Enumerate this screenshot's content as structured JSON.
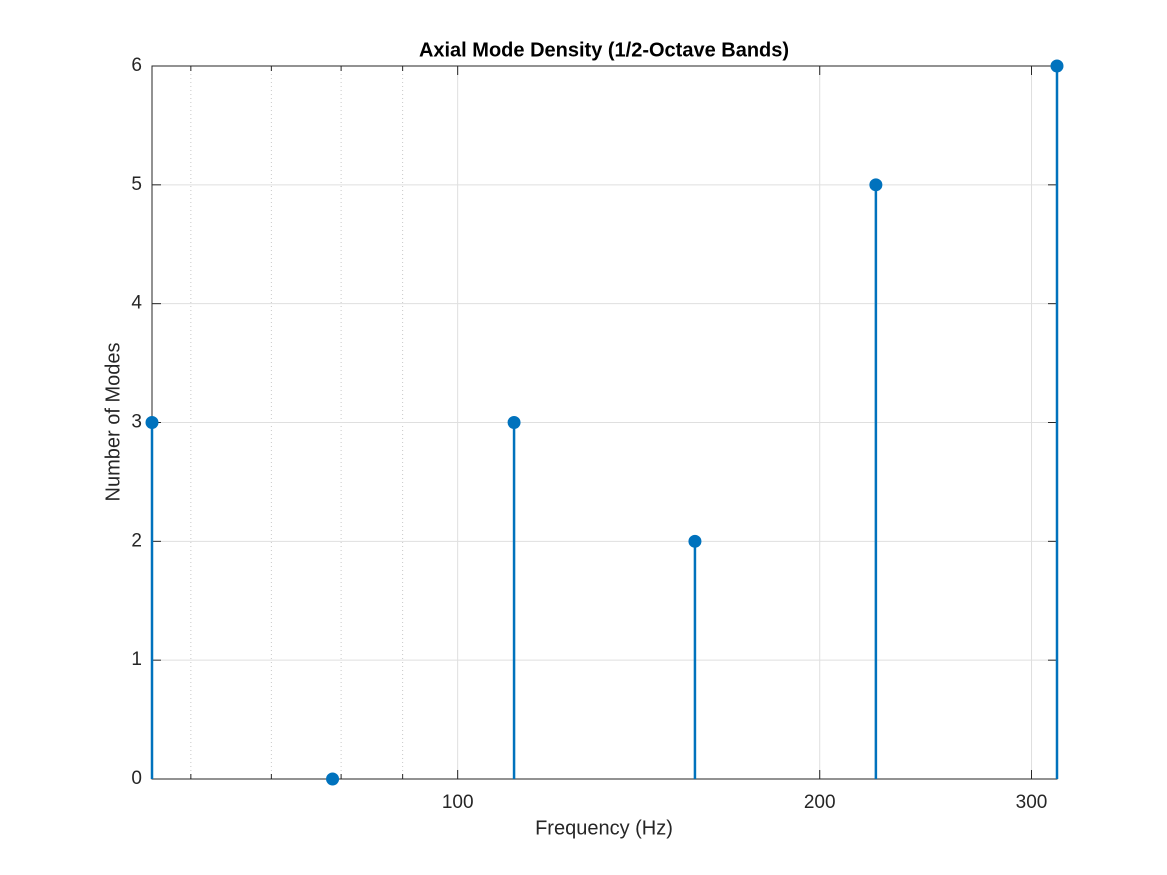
{
  "chart_data": {
    "type": "stem",
    "title": "Axial Mode Density (1/2-Octave Bands)",
    "x_label": "Frequency (Hz)",
    "y_label": "Number of Modes",
    "x": [
      55.7,
      78.7,
      111.4,
      157.5,
      222.7,
      315
    ],
    "series": [
      {
        "color": "#0072bd",
        "values": [
          3,
          0,
          3,
          2,
          5,
          6
        ]
      }
    ],
    "xscale": "log",
    "xlim": [
      55.7,
      315
    ],
    "xticks": [
      100,
      200,
      300
    ],
    "xminorticks": [
      60,
      70,
      80,
      90
    ],
    "ylim": [
      0,
      6
    ],
    "yticks": [
      0,
      1,
      2,
      3,
      4,
      5,
      6
    ],
    "grid": true
  }
}
